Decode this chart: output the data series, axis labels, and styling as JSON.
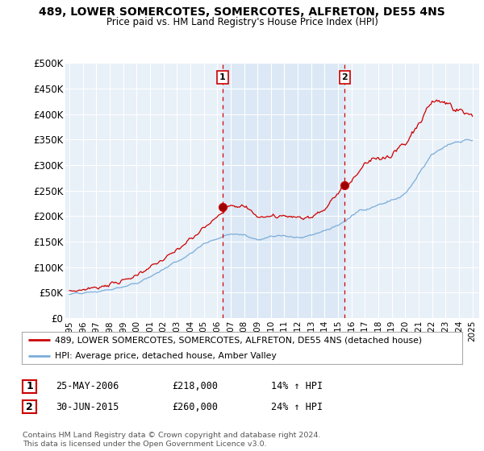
{
  "title_line1": "489, LOWER SOMERCOTES, SOMERCOTES, ALFRETON, DE55 4NS",
  "title_line2": "Price paid vs. HM Land Registry's House Price Index (HPI)",
  "ylabel_ticks": [
    "£0",
    "£50K",
    "£100K",
    "£150K",
    "£200K",
    "£250K",
    "£300K",
    "£350K",
    "£400K",
    "£450K",
    "£500K"
  ],
  "ytick_values": [
    0,
    50000,
    100000,
    150000,
    200000,
    250000,
    300000,
    350000,
    400000,
    450000,
    500000
  ],
  "xlim_start": 1994.7,
  "xlim_end": 2025.5,
  "ylim_min": 0,
  "ylim_max": 500000,
  "sale1_year": 2006.4,
  "sale1_price": 218000,
  "sale2_year": 2015.5,
  "sale2_price": 260000,
  "sale_color": "#cc0000",
  "hpi_color": "#7aadda",
  "shade_color": "#dce8f5",
  "vline_color": "#cc0000",
  "bg_color": "#ffffff",
  "plot_bg_color": "#e8f0f8",
  "grid_color": "#ffffff",
  "legend_label1": "489, LOWER SOMERCOTES, SOMERCOTES, ALFRETON, DE55 4NS (detached house)",
  "legend_label2": "HPI: Average price, detached house, Amber Valley",
  "annotation1_date": "25-MAY-2006",
  "annotation1_price": "£218,000",
  "annotation1_hpi": "14% ↑ HPI",
  "annotation2_date": "30-JUN-2015",
  "annotation2_price": "£260,000",
  "annotation2_hpi": "24% ↑ HPI",
  "footnote": "Contains HM Land Registry data © Crown copyright and database right 2024.\nThis data is licensed under the Open Government Licence v3.0.",
  "xtick_years": [
    1995,
    1996,
    1997,
    1998,
    1999,
    2000,
    2001,
    2002,
    2003,
    2004,
    2005,
    2006,
    2007,
    2008,
    2009,
    2010,
    2011,
    2012,
    2013,
    2014,
    2015,
    2016,
    2017,
    2018,
    2019,
    2020,
    2021,
    2022,
    2023,
    2024,
    2025
  ]
}
